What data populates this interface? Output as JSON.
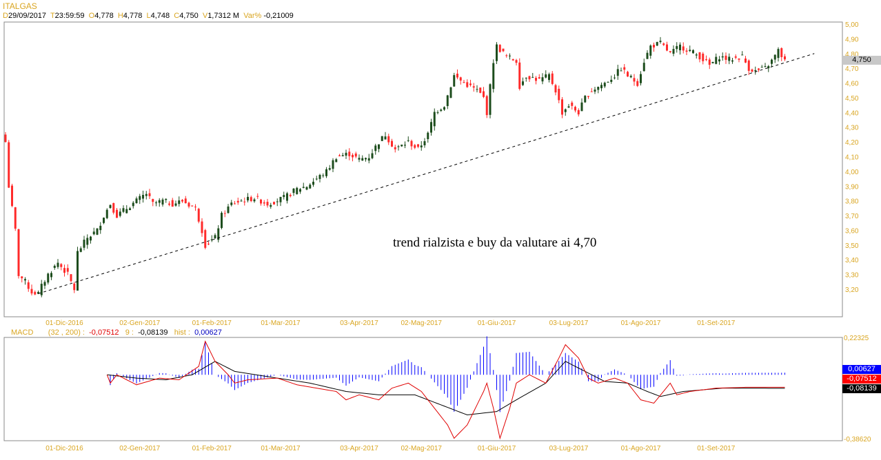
{
  "header": {
    "symbol": "ITALGAS",
    "d_label": "D",
    "date": "29/09/2017",
    "t_label": "T",
    "time": "23:59:59",
    "o_label": "O",
    "open": "4,778",
    "h_label": "H",
    "high": "4,778",
    "l_label": "L",
    "low": "4,748",
    "c_label": "C",
    "close": "4,750",
    "v_label": "V",
    "volume": "1,7312 M",
    "var_label": "Var%",
    "var": "-0,21009"
  },
  "annotation": "trend rialzista e buy da valutare ai 4,70",
  "last_price_badge": "4,750",
  "macd_legend": {
    "name": "MACD",
    "params": "(32 , 200) :",
    "macd": "-0,07512",
    "signal_label": "9 :",
    "signal": "-0,08139",
    "hist_label": "hist :",
    "hist": "0,00627"
  },
  "macd_badges": {
    "hist": "0,00627",
    "macd": "-0,07512",
    "signal": "-0,08139"
  },
  "colors": {
    "up": "#1d4d1d",
    "down": "#ff2a2a",
    "macd": "#e00000",
    "signal": "#000000",
    "hist": "#0000ff",
    "axis_text": "#d9a520"
  },
  "chart_data": [
    {
      "type": "candlestick",
      "title": "ITALGAS",
      "ylim": [
        3.1,
        5.0
      ],
      "y_ticks": [
        "5,00",
        "4,90",
        "4,80",
        "4,70",
        "4,60",
        "4,50",
        "4,40",
        "4,30",
        "4,20",
        "4,10",
        "4,00",
        "3,90",
        "3,80",
        "3,70",
        "3,60",
        "3,50",
        "3,40",
        "3,30",
        "3,20"
      ],
      "x_ticks": [
        "01-Dic-2016",
        "02-Gen-2017",
        "01-Feb-2017",
        "01-Mar-2017",
        "03-Apr-2017",
        "02-Mag-2017",
        "01-Giu-2017",
        "03-Lug-2017",
        "01-Ago-2017",
        "01-Set-2017"
      ],
      "x_tick_sessions": [
        18,
        41,
        63,
        84,
        108,
        127,
        150,
        172,
        194,
        217
      ],
      "sessions": 239,
      "close_anchors": [
        [
          0,
          4.2
        ],
        [
          1,
          3.9
        ],
        [
          3,
          3.6
        ],
        [
          4,
          3.3
        ],
        [
          6,
          3.25
        ],
        [
          8,
          3.18
        ],
        [
          10,
          3.17
        ],
        [
          11,
          3.22
        ],
        [
          13,
          3.3
        ],
        [
          16,
          3.38
        ],
        [
          19,
          3.3
        ],
        [
          21,
          3.2
        ],
        [
          22,
          3.45
        ],
        [
          25,
          3.55
        ],
        [
          28,
          3.6
        ],
        [
          30,
          3.7
        ],
        [
          32,
          3.78
        ],
        [
          34,
          3.7
        ],
        [
          37,
          3.75
        ],
        [
          40,
          3.8
        ],
        [
          43,
          3.85
        ],
        [
          45,
          3.78
        ],
        [
          48,
          3.8
        ],
        [
          51,
          3.78
        ],
        [
          54,
          3.8
        ],
        [
          58,
          3.75
        ],
        [
          60,
          3.6
        ],
        [
          61,
          3.5
        ],
        [
          64,
          3.55
        ],
        [
          66,
          3.7
        ],
        [
          69,
          3.78
        ],
        [
          72,
          3.8
        ],
        [
          76,
          3.82
        ],
        [
          80,
          3.78
        ],
        [
          85,
          3.82
        ],
        [
          89,
          3.88
        ],
        [
          92,
          3.9
        ],
        [
          95,
          3.95
        ],
        [
          98,
          4.0
        ],
        [
          101,
          4.1
        ],
        [
          105,
          4.12
        ],
        [
          108,
          4.08
        ],
        [
          111,
          4.1
        ],
        [
          114,
          4.2
        ],
        [
          116,
          4.25
        ],
        [
          119,
          4.15
        ],
        [
          123,
          4.2
        ],
        [
          126,
          4.15
        ],
        [
          129,
          4.25
        ],
        [
          131,
          4.4
        ],
        [
          134,
          4.45
        ],
        [
          137,
          4.65
        ],
        [
          140,
          4.6
        ],
        [
          144,
          4.55
        ],
        [
          146,
          4.5
        ],
        [
          147,
          4.4
        ],
        [
          149,
          4.75
        ],
        [
          150,
          4.85
        ],
        [
          153,
          4.78
        ],
        [
          156,
          4.75
        ],
        [
          157,
          4.58
        ],
        [
          159,
          4.65
        ],
        [
          163,
          4.62
        ],
        [
          166,
          4.65
        ],
        [
          168,
          4.55
        ],
        [
          170,
          4.4
        ],
        [
          172,
          4.45
        ],
        [
          175,
          4.4
        ],
        [
          177,
          4.5
        ],
        [
          179,
          4.55
        ],
        [
          183,
          4.6
        ],
        [
          186,
          4.65
        ],
        [
          188,
          4.7
        ],
        [
          190,
          4.65
        ],
        [
          193,
          4.6
        ],
        [
          195,
          4.75
        ],
        [
          197,
          4.85
        ],
        [
          200,
          4.87
        ],
        [
          203,
          4.8
        ],
        [
          206,
          4.85
        ],
        [
          209,
          4.82
        ],
        [
          212,
          4.78
        ],
        [
          215,
          4.72
        ],
        [
          218,
          4.78
        ],
        [
          221,
          4.76
        ],
        [
          225,
          4.78
        ],
        [
          227,
          4.7
        ],
        [
          229,
          4.68
        ],
        [
          232,
          4.7
        ],
        [
          234,
          4.75
        ],
        [
          236,
          4.82
        ],
        [
          238,
          4.75
        ]
      ],
      "trendline": [
        [
          10,
          3.17
        ],
        [
          247,
          4.8
        ]
      ]
    },
    {
      "type": "line",
      "title": "MACD (32,200) signal 9",
      "ylim": [
        -0.3862,
        0.22325
      ],
      "y_ticks": [
        "0,22325",
        "-0,38620"
      ],
      "x_ticks": [
        "01-Dic-2016",
        "02-Gen-2017",
        "01-Feb-2017",
        "01-Mar-2017",
        "03-Apr-2017",
        "02-Mag-2017",
        "01-Giu-2017",
        "03-Lug-2017",
        "01-Ago-2017",
        "01-Set-2017"
      ],
      "series": [
        {
          "name": "MACD",
          "anchors": [
            [
              31,
              0
            ],
            [
              32,
              -0.05
            ],
            [
              34,
              0
            ],
            [
              40,
              -0.06
            ],
            [
              47,
              -0.02
            ],
            [
              53,
              -0.03
            ],
            [
              59,
              0.05
            ],
            [
              61,
              0.2
            ],
            [
              64,
              0.08
            ],
            [
              68,
              0
            ],
            [
              70,
              -0.05
            ],
            [
              74,
              -0.03
            ],
            [
              83,
              -0.02
            ],
            [
              89,
              -0.06
            ],
            [
              95,
              -0.08
            ],
            [
              101,
              -0.1
            ],
            [
              104,
              -0.15
            ],
            [
              108,
              -0.12
            ],
            [
              114,
              -0.15
            ],
            [
              118,
              -0.08
            ],
            [
              123,
              -0.05
            ],
            [
              127,
              -0.1
            ],
            [
              131,
              -0.2
            ],
            [
              135,
              -0.3
            ],
            [
              137,
              -0.38
            ],
            [
              141,
              -0.3
            ],
            [
              146,
              -0.1
            ],
            [
              147,
              -0.05
            ],
            [
              149,
              -0.2
            ],
            [
              151,
              -0.38
            ],
            [
              154,
              -0.2
            ],
            [
              156,
              -0.05
            ],
            [
              160,
              0
            ],
            [
              165,
              -0.05
            ],
            [
              169,
              0.1
            ],
            [
              171,
              0.18
            ],
            [
              175,
              0.1
            ],
            [
              178,
              -0.02
            ],
            [
              181,
              -0.05
            ],
            [
              186,
              -0.02
            ],
            [
              190,
              -0.05
            ],
            [
              194,
              -0.15
            ],
            [
              198,
              -0.17
            ],
            [
              203,
              -0.05
            ],
            [
              205,
              -0.12
            ],
            [
              209,
              -0.1
            ],
            [
              217,
              -0.08
            ],
            [
              226,
              -0.075
            ],
            [
              238,
              -0.075
            ]
          ]
        },
        {
          "name": "Signal",
          "anchors": [
            [
              31,
              0
            ],
            [
              40,
              -0.02
            ],
            [
              49,
              -0.03
            ],
            [
              57,
              0
            ],
            [
              64,
              0.08
            ],
            [
              70,
              0.02
            ],
            [
              83,
              -0.02
            ],
            [
              93,
              -0.05
            ],
            [
              104,
              -0.1
            ],
            [
              114,
              -0.12
            ],
            [
              125,
              -0.12
            ],
            [
              133,
              -0.18
            ],
            [
              141,
              -0.24
            ],
            [
              150,
              -0.22
            ],
            [
              156,
              -0.15
            ],
            [
              165,
              -0.05
            ],
            [
              171,
              0.08
            ],
            [
              177,
              0.02
            ],
            [
              183,
              -0.04
            ],
            [
              190,
              -0.05
            ],
            [
              196,
              -0.1
            ],
            [
              200,
              -0.13
            ],
            [
              207,
              -0.1
            ],
            [
              219,
              -0.08
            ],
            [
              238,
              -0.081
            ]
          ]
        }
      ]
    }
  ]
}
